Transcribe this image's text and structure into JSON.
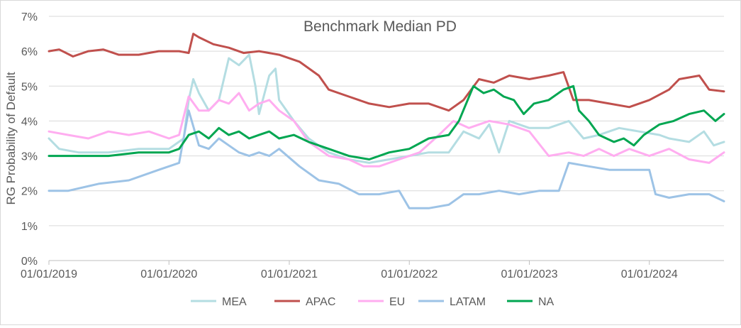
{
  "chart_data": {
    "type": "line",
    "title": "Benchmark Median PD",
    "ylabel": "RG Probability of Default",
    "xlabel": "",
    "ylim": [
      0,
      7
    ],
    "yticks": [
      "0%",
      "1%",
      "2%",
      "3%",
      "4%",
      "5%",
      "6%",
      "7%"
    ],
    "xlim": [
      "2019-01-01",
      "2024-08-15"
    ],
    "xticks": [
      {
        "date": "2019-01-01",
        "label": "01/01/2019"
      },
      {
        "date": "2020-01-01",
        "label": "01/01/2020"
      },
      {
        "date": "2021-01-01",
        "label": "01/01/2021"
      },
      {
        "date": "2022-01-01",
        "label": "01/01/2022"
      },
      {
        "date": "2023-01-01",
        "label": "01/01/2023"
      },
      {
        "date": "2024-01-01",
        "label": "01/01/2024"
      }
    ],
    "grid": "horizontal",
    "legend": "bottom",
    "series": [
      {
        "name": "MEA",
        "color": "#b4dde2",
        "points": [
          [
            "2019-01-01",
            3.5
          ],
          [
            "2019-02-01",
            3.2
          ],
          [
            "2019-04-01",
            3.1
          ],
          [
            "2019-07-01",
            3.1
          ],
          [
            "2019-10-01",
            3.2
          ],
          [
            "2020-01-01",
            3.2
          ],
          [
            "2020-02-15",
            3.5
          ],
          [
            "2020-03-01",
            4.6
          ],
          [
            "2020-03-15",
            5.2
          ],
          [
            "2020-04-01",
            4.8
          ],
          [
            "2020-05-01",
            4.3
          ],
          [
            "2020-06-01",
            4.6
          ],
          [
            "2020-07-01",
            5.8
          ],
          [
            "2020-08-01",
            5.6
          ],
          [
            "2020-09-01",
            5.9
          ],
          [
            "2020-09-20",
            5.0
          ],
          [
            "2020-10-01",
            4.2
          ],
          [
            "2020-11-01",
            5.3
          ],
          [
            "2020-11-20",
            5.5
          ],
          [
            "2020-12-01",
            4.6
          ],
          [
            "2021-01-15",
            4.0
          ],
          [
            "2021-03-01",
            3.5
          ],
          [
            "2021-05-01",
            3.1
          ],
          [
            "2021-07-01",
            2.9
          ],
          [
            "2021-09-01",
            2.8
          ],
          [
            "2021-11-01",
            2.9
          ],
          [
            "2022-01-01",
            3.0
          ],
          [
            "2022-03-01",
            3.1
          ],
          [
            "2022-05-01",
            3.1
          ],
          [
            "2022-06-15",
            3.7
          ],
          [
            "2022-08-01",
            3.5
          ],
          [
            "2022-09-01",
            3.9
          ],
          [
            "2022-10-01",
            3.1
          ],
          [
            "2022-11-01",
            4.0
          ],
          [
            "2023-01-01",
            3.8
          ],
          [
            "2023-03-01",
            3.8
          ],
          [
            "2023-05-01",
            4.0
          ],
          [
            "2023-06-15",
            3.5
          ],
          [
            "2023-08-01",
            3.6
          ],
          [
            "2023-10-01",
            3.8
          ],
          [
            "2023-12-01",
            3.7
          ],
          [
            "2024-02-01",
            3.6
          ],
          [
            "2024-03-01",
            3.5
          ],
          [
            "2024-05-01",
            3.4
          ],
          [
            "2024-06-15",
            3.7
          ],
          [
            "2024-07-15",
            3.3
          ],
          [
            "2024-08-15",
            3.4
          ]
        ]
      },
      {
        "name": "APAC",
        "color": "#c0504d",
        "points": [
          [
            "2019-01-01",
            6.0
          ],
          [
            "2019-02-01",
            6.05
          ],
          [
            "2019-03-15",
            5.85
          ],
          [
            "2019-05-01",
            6.0
          ],
          [
            "2019-06-15",
            6.05
          ],
          [
            "2019-08-01",
            5.9
          ],
          [
            "2019-10-01",
            5.9
          ],
          [
            "2019-12-01",
            6.0
          ],
          [
            "2020-02-01",
            6.0
          ],
          [
            "2020-03-01",
            5.95
          ],
          [
            "2020-03-15",
            6.5
          ],
          [
            "2020-04-01",
            6.4
          ],
          [
            "2020-05-15",
            6.2
          ],
          [
            "2020-07-01",
            6.1
          ],
          [
            "2020-08-15",
            5.95
          ],
          [
            "2020-10-01",
            6.0
          ],
          [
            "2020-12-01",
            5.9
          ],
          [
            "2021-02-01",
            5.7
          ],
          [
            "2021-04-01",
            5.3
          ],
          [
            "2021-05-01",
            4.9
          ],
          [
            "2021-07-01",
            4.7
          ],
          [
            "2021-09-01",
            4.5
          ],
          [
            "2021-11-01",
            4.4
          ],
          [
            "2022-01-01",
            4.5
          ],
          [
            "2022-03-01",
            4.5
          ],
          [
            "2022-05-01",
            4.3
          ],
          [
            "2022-06-15",
            4.6
          ],
          [
            "2022-08-01",
            5.2
          ],
          [
            "2022-09-15",
            5.1
          ],
          [
            "2022-11-01",
            5.3
          ],
          [
            "2023-01-01",
            5.2
          ],
          [
            "2023-03-01",
            5.3
          ],
          [
            "2023-04-15",
            5.4
          ],
          [
            "2023-05-15",
            4.6
          ],
          [
            "2023-07-01",
            4.6
          ],
          [
            "2023-09-01",
            4.5
          ],
          [
            "2023-11-01",
            4.4
          ],
          [
            "2024-01-01",
            4.6
          ],
          [
            "2024-03-01",
            4.9
          ],
          [
            "2024-04-01",
            5.2
          ],
          [
            "2024-06-01",
            5.3
          ],
          [
            "2024-07-01",
            4.9
          ],
          [
            "2024-08-15",
            4.85
          ]
        ]
      },
      {
        "name": "EU",
        "color": "#ffadf0",
        "points": [
          [
            "2019-01-01",
            3.7
          ],
          [
            "2019-03-01",
            3.6
          ],
          [
            "2019-05-01",
            3.5
          ],
          [
            "2019-07-01",
            3.7
          ],
          [
            "2019-09-01",
            3.6
          ],
          [
            "2019-11-01",
            3.7
          ],
          [
            "2020-01-01",
            3.5
          ],
          [
            "2020-02-01",
            3.6
          ],
          [
            "2020-03-01",
            4.7
          ],
          [
            "2020-04-01",
            4.3
          ],
          [
            "2020-05-01",
            4.3
          ],
          [
            "2020-06-01",
            4.6
          ],
          [
            "2020-07-01",
            4.5
          ],
          [
            "2020-08-01",
            4.8
          ],
          [
            "2020-09-01",
            4.3
          ],
          [
            "2020-10-01",
            4.5
          ],
          [
            "2020-11-01",
            4.6
          ],
          [
            "2020-12-01",
            4.3
          ],
          [
            "2021-01-15",
            4.0
          ],
          [
            "2021-03-01",
            3.4
          ],
          [
            "2021-05-01",
            3.0
          ],
          [
            "2021-07-01",
            2.9
          ],
          [
            "2021-08-15",
            2.7
          ],
          [
            "2021-10-01",
            2.7
          ],
          [
            "2021-12-01",
            2.9
          ],
          [
            "2022-02-01",
            3.1
          ],
          [
            "2022-04-01",
            3.6
          ],
          [
            "2022-05-15",
            4.0
          ],
          [
            "2022-07-01",
            3.8
          ],
          [
            "2022-09-01",
            4.0
          ],
          [
            "2022-11-01",
            3.9
          ],
          [
            "2023-01-01",
            3.7
          ],
          [
            "2023-03-01",
            3.0
          ],
          [
            "2023-05-01",
            3.1
          ],
          [
            "2023-06-15",
            3.0
          ],
          [
            "2023-08-01",
            3.2
          ],
          [
            "2023-09-15",
            3.0
          ],
          [
            "2023-11-01",
            3.2
          ],
          [
            "2024-01-01",
            3.0
          ],
          [
            "2024-03-01",
            3.2
          ],
          [
            "2024-05-01",
            2.9
          ],
          [
            "2024-07-01",
            2.8
          ],
          [
            "2024-08-15",
            3.1
          ]
        ]
      },
      {
        "name": "LATAM",
        "color": "#9dc3e6",
        "points": [
          [
            "2019-01-01",
            2.0
          ],
          [
            "2019-03-01",
            2.0
          ],
          [
            "2019-06-01",
            2.2
          ],
          [
            "2019-09-01",
            2.3
          ],
          [
            "2019-12-01",
            2.6
          ],
          [
            "2020-02-01",
            2.8
          ],
          [
            "2020-03-01",
            4.3
          ],
          [
            "2020-04-01",
            3.3
          ],
          [
            "2020-05-01",
            3.2
          ],
          [
            "2020-06-01",
            3.5
          ],
          [
            "2020-07-01",
            3.3
          ],
          [
            "2020-08-01",
            3.1
          ],
          [
            "2020-09-01",
            3.0
          ],
          [
            "2020-10-01",
            3.1
          ],
          [
            "2020-11-01",
            3.0
          ],
          [
            "2020-12-01",
            3.2
          ],
          [
            "2021-02-01",
            2.7
          ],
          [
            "2021-04-01",
            2.3
          ],
          [
            "2021-06-01",
            2.2
          ],
          [
            "2021-08-01",
            1.9
          ],
          [
            "2021-10-01",
            1.9
          ],
          [
            "2021-12-01",
            2.0
          ],
          [
            "2022-01-01",
            1.5
          ],
          [
            "2022-03-01",
            1.5
          ],
          [
            "2022-05-01",
            1.6
          ],
          [
            "2022-06-15",
            1.9
          ],
          [
            "2022-08-01",
            1.9
          ],
          [
            "2022-10-01",
            2.0
          ],
          [
            "2022-12-01",
            1.9
          ],
          [
            "2023-02-01",
            2.0
          ],
          [
            "2023-04-01",
            2.0
          ],
          [
            "2023-05-01",
            2.8
          ],
          [
            "2023-07-01",
            2.7
          ],
          [
            "2023-09-01",
            2.6
          ],
          [
            "2023-11-01",
            2.6
          ],
          [
            "2024-01-01",
            2.6
          ],
          [
            "2024-01-20",
            1.9
          ],
          [
            "2024-03-01",
            1.8
          ],
          [
            "2024-05-01",
            1.9
          ],
          [
            "2024-07-01",
            1.9
          ],
          [
            "2024-08-15",
            1.7
          ]
        ]
      },
      {
        "name": "NA",
        "color": "#00a651",
        "points": [
          [
            "2019-01-01",
            3.0
          ],
          [
            "2019-04-01",
            3.0
          ],
          [
            "2019-07-01",
            3.0
          ],
          [
            "2019-10-01",
            3.1
          ],
          [
            "2020-01-01",
            3.1
          ],
          [
            "2020-02-01",
            3.2
          ],
          [
            "2020-03-01",
            3.6
          ],
          [
            "2020-04-01",
            3.7
          ],
          [
            "2020-05-01",
            3.5
          ],
          [
            "2020-06-01",
            3.8
          ],
          [
            "2020-07-01",
            3.6
          ],
          [
            "2020-08-01",
            3.7
          ],
          [
            "2020-09-01",
            3.5
          ],
          [
            "2020-10-01",
            3.6
          ],
          [
            "2020-11-01",
            3.7
          ],
          [
            "2020-12-01",
            3.5
          ],
          [
            "2021-01-15",
            3.6
          ],
          [
            "2021-03-01",
            3.4
          ],
          [
            "2021-05-01",
            3.2
          ],
          [
            "2021-07-01",
            3.0
          ],
          [
            "2021-09-01",
            2.9
          ],
          [
            "2021-11-01",
            3.1
          ],
          [
            "2022-01-01",
            3.2
          ],
          [
            "2022-03-01",
            3.5
          ],
          [
            "2022-05-01",
            3.6
          ],
          [
            "2022-06-01",
            4.0
          ],
          [
            "2022-07-15",
            5.0
          ],
          [
            "2022-08-15",
            4.8
          ],
          [
            "2022-09-15",
            4.9
          ],
          [
            "2022-10-15",
            4.7
          ],
          [
            "2022-11-15",
            4.6
          ],
          [
            "2022-12-15",
            4.2
          ],
          [
            "2023-01-15",
            4.5
          ],
          [
            "2023-03-01",
            4.6
          ],
          [
            "2023-04-15",
            4.9
          ],
          [
            "2023-05-15",
            5.0
          ],
          [
            "2023-06-01",
            4.3
          ],
          [
            "2023-07-01",
            4.0
          ],
          [
            "2023-08-01",
            3.6
          ],
          [
            "2023-09-15",
            3.4
          ],
          [
            "2023-10-15",
            3.5
          ],
          [
            "2023-11-15",
            3.3
          ],
          [
            "2023-12-15",
            3.6
          ],
          [
            "2024-02-01",
            3.9
          ],
          [
            "2024-03-15",
            4.0
          ],
          [
            "2024-05-01",
            4.2
          ],
          [
            "2024-06-15",
            4.3
          ],
          [
            "2024-07-20",
            4.0
          ],
          [
            "2024-08-15",
            4.2
          ]
        ]
      }
    ]
  }
}
